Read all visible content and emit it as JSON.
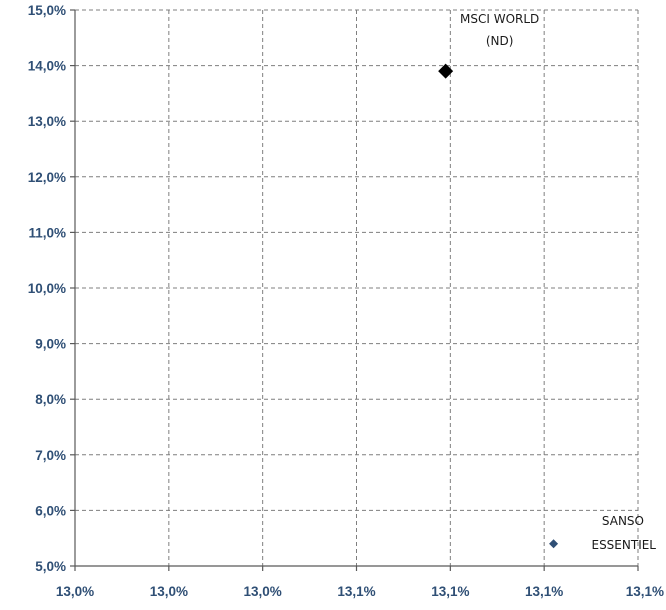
{
  "chart_data": {
    "type": "scatter",
    "title": "",
    "xlabel": "",
    "ylabel": "",
    "y_ticks": [
      "5,0%",
      "6,0%",
      "7,0%",
      "8,0%",
      "9,0%",
      "10,0%",
      "11,0%",
      "12,0%",
      "13,0%",
      "14,0%",
      "15,0%"
    ],
    "x_ticks": [
      "13,0%",
      "13,0%",
      "13,0%",
      "13,1%",
      "13,1%",
      "13,1%",
      "13,1%"
    ],
    "ylim": [
      5.0,
      15.0
    ],
    "xlim": [
      0,
      6
    ],
    "grid": true,
    "legend": "none",
    "points": [
      {
        "label_lines": [
          "MSCI WORLD",
          "(ND)"
        ],
        "x": 3.95,
        "y": 13.9,
        "marker": "diamond",
        "color": "#000000",
        "size": "large"
      },
      {
        "label_lines": [
          "SANSO",
          "ESSENTIEL"
        ],
        "x": 5.1,
        "y": 5.4,
        "marker": "diamond",
        "color": "#2f4f75",
        "size": "small"
      }
    ]
  }
}
